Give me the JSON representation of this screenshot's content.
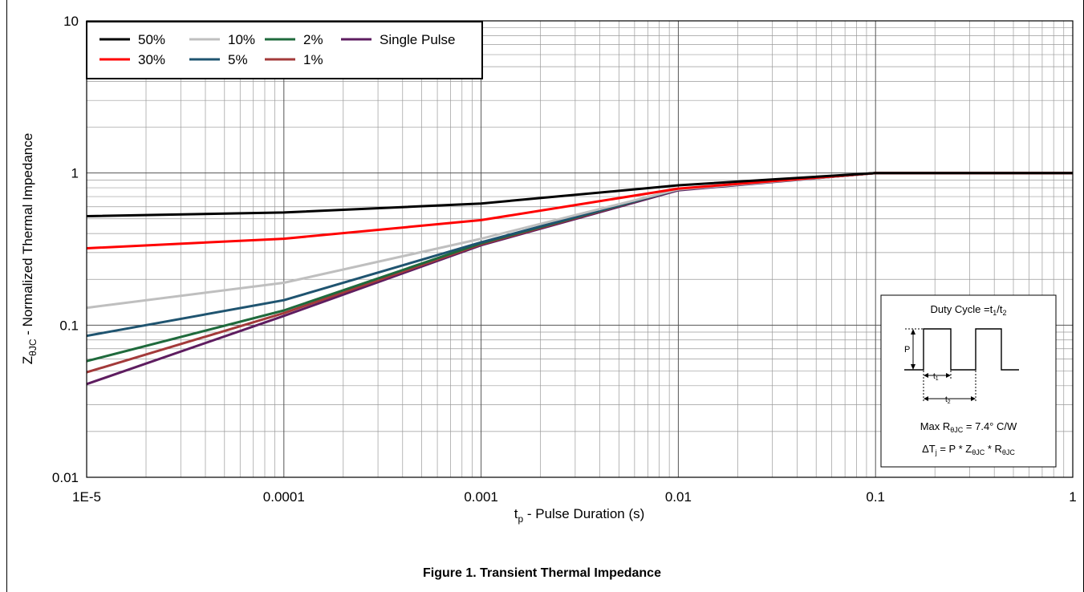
{
  "chart_data": {
    "type": "line",
    "xscale": "log",
    "yscale": "log",
    "xlim": [
      1e-05,
      1
    ],
    "ylim": [
      0.01,
      10
    ],
    "grid": true,
    "xticks": [
      {
        "value": 1e-05,
        "label": "1E-5"
      },
      {
        "value": 0.0001,
        "label": "0.0001"
      },
      {
        "value": 0.001,
        "label": "0.001"
      },
      {
        "value": 0.01,
        "label": "0.01"
      },
      {
        "value": 0.1,
        "label": "0.1"
      },
      {
        "value": 1,
        "label": "1"
      }
    ],
    "yticks": [
      {
        "value": 0.01,
        "label": "0.01"
      },
      {
        "value": 0.1,
        "label": "0.1"
      },
      {
        "value": 1,
        "label": "1"
      },
      {
        "value": 10,
        "label": "10"
      }
    ],
    "xlabel": {
      "main": "t",
      "sub": "p",
      "rest": " - Pulse Duration (s)"
    },
    "ylabel": {
      "main": "Z",
      "sub": "θJC",
      "rest": " - Normalized Thermal Impedance"
    },
    "legend_position": "top-left",
    "series": [
      {
        "name": "50%",
        "color": "#000000",
        "x": [
          1e-05,
          0.0001,
          0.001,
          0.01,
          0.1,
          1
        ],
        "y": [
          0.52,
          0.55,
          0.63,
          0.83,
          1.0,
          1.0
        ]
      },
      {
        "name": "30%",
        "color": "#ff0000",
        "x": [
          1e-05,
          0.0001,
          0.001,
          0.01,
          0.1,
          1
        ],
        "y": [
          0.32,
          0.37,
          0.49,
          0.79,
          1.0,
          1.0
        ]
      },
      {
        "name": "10%",
        "color": "#bfbfbf",
        "x": [
          1e-05,
          0.0001,
          0.001,
          0.01,
          0.1,
          1
        ],
        "y": [
          0.13,
          0.19,
          0.37,
          0.78,
          1.0,
          1.0
        ]
      },
      {
        "name": "5%",
        "color": "#1f5470",
        "x": [
          1e-05,
          0.0001,
          0.001,
          0.01,
          0.1,
          1
        ],
        "y": [
          0.085,
          0.146,
          0.35,
          0.78,
          1.0,
          1.0
        ]
      },
      {
        "name": "2%",
        "color": "#1f6a3c",
        "x": [
          1e-05,
          0.0001,
          0.001,
          0.01,
          0.1,
          1
        ],
        "y": [
          0.058,
          0.125,
          0.345,
          0.78,
          1.0,
          1.0
        ]
      },
      {
        "name": "1%",
        "color": "#a33a3a",
        "x": [
          1e-05,
          0.0001,
          0.001,
          0.01,
          0.1,
          1
        ],
        "y": [
          0.049,
          0.12,
          0.34,
          0.78,
          1.0,
          1.0
        ]
      },
      {
        "name": "Single Pulse",
        "color": "#5e1d60",
        "x": [
          1e-05,
          0.0001,
          0.001,
          0.01,
          0.1,
          1
        ],
        "y": [
          0.041,
          0.115,
          0.335,
          0.77,
          1.0,
          1.0
        ]
      }
    ],
    "legend": [
      [
        "50%",
        "10%",
        "2%",
        "Single Pulse"
      ],
      [
        "30%",
        "5%",
        "1%"
      ]
    ],
    "inset": {
      "title": {
        "main": "Duty Cycle =t",
        "s1": "1",
        "mid": "/t",
        "s2": "2"
      },
      "p_label": "P",
      "t1_label": {
        "main": "t",
        "sub": "1"
      },
      "t2_label": {
        "main": "t",
        "sub": "2"
      },
      "rmax": {
        "pre": "Max R",
        "sub": "θJC",
        "post": " = 7.4° C/W"
      },
      "dtj": {
        "a": "ΔT",
        "a_sub": "j",
        "b": " = P * Z",
        "b_sub": "θJC",
        "c": " * R",
        "c_sub": "θJC"
      }
    }
  },
  "caption": "Figure 1.  Transient Thermal Impedance"
}
